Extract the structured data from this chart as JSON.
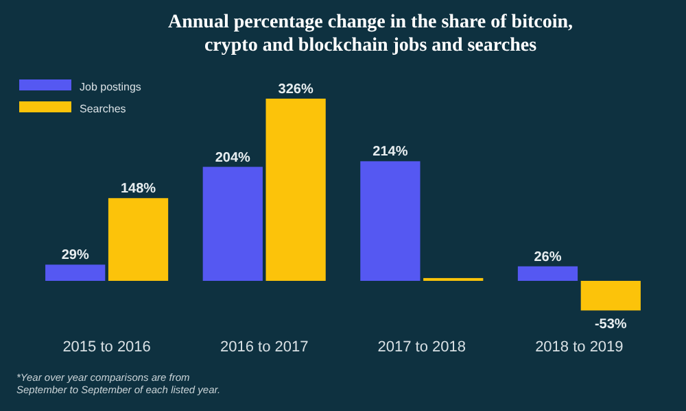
{
  "chart_data": {
    "type": "bar",
    "title": "Annual percentage change in the share of bitcoin, crypto and blockchain jobs and searches",
    "categories": [
      "2015 to 2016",
      "2016 to 2017",
      "2017 to 2018",
      "2018 to 2019"
    ],
    "series": [
      {
        "name": "Job postings",
        "color": "#5558f2",
        "values": [
          29,
          204,
          214,
          26
        ],
        "value_labels": [
          "29%",
          "204%",
          "214%",
          "26%"
        ]
      },
      {
        "name": "Searches",
        "color": "#fcc30a",
        "values": [
          148,
          326,
          5,
          -53
        ],
        "value_labels": [
          "148%",
          "326%",
          null,
          "-53%"
        ]
      }
    ],
    "legend": "top left",
    "annotations": [
      "*Year over year comparisons are from September to September of each listed year."
    ]
  }
}
